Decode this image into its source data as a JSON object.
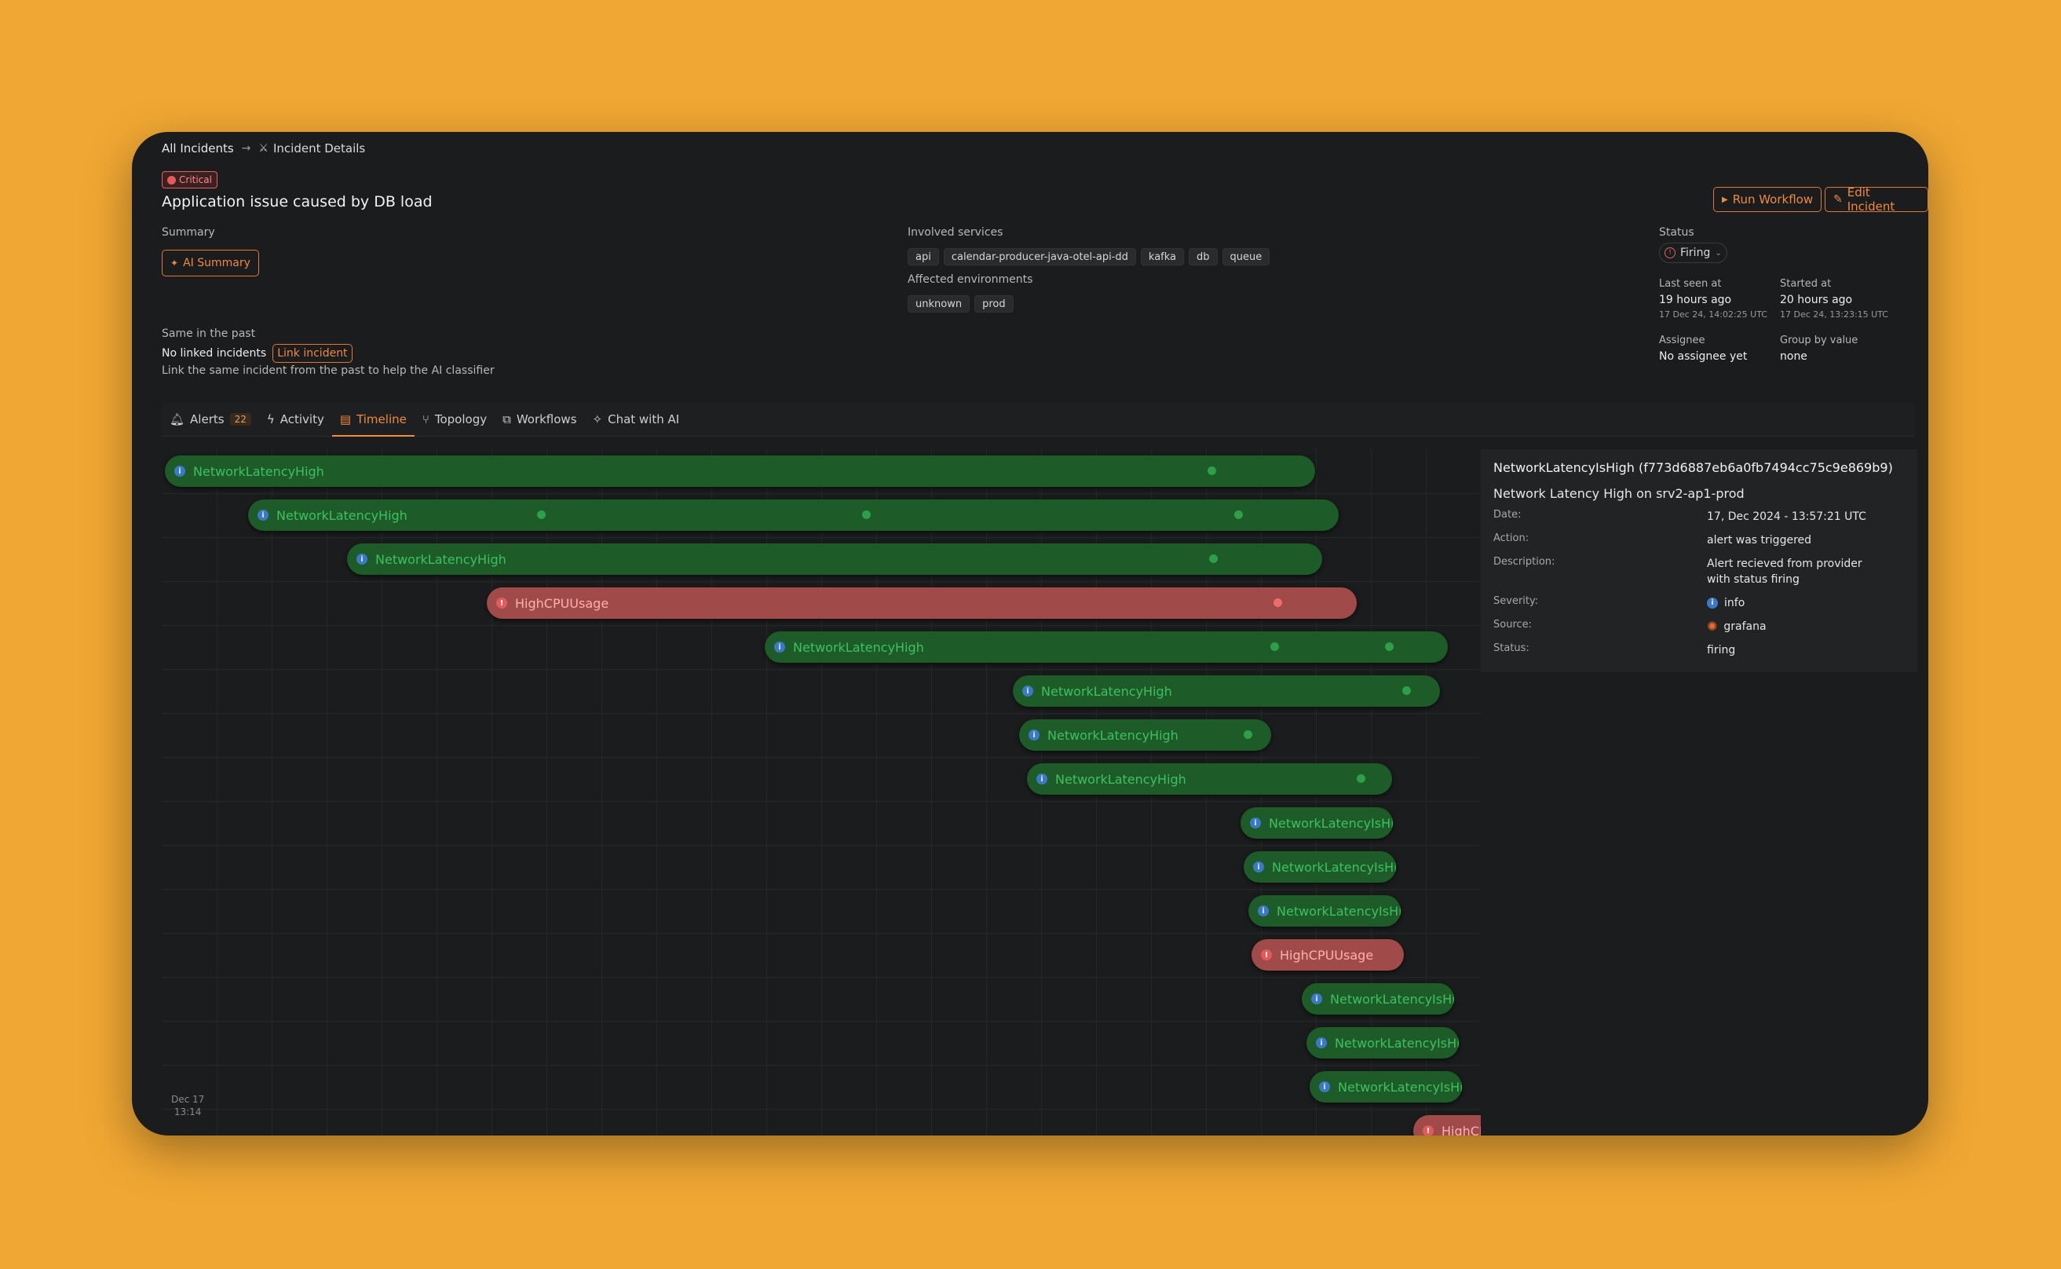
{
  "breadcrumb": {
    "root": "All Incidents",
    "current": "Incident Details"
  },
  "incident": {
    "severity": "Critical",
    "title": "Application issue caused by DB load"
  },
  "actions": {
    "run_workflow": "Run Workflow",
    "edit_incident": "Edit Incident"
  },
  "summary": {
    "label": "Summary",
    "ai_button": "AI Summary"
  },
  "services": {
    "label": "Involved services",
    "items": [
      "api",
      "calendar-producer-java-otel-api-dd",
      "kafka",
      "db",
      "queue"
    ]
  },
  "environments": {
    "label": "Affected environments",
    "items": [
      "unknown",
      "prod"
    ]
  },
  "past": {
    "label": "Same in the past",
    "value": "No linked incidents",
    "link_button": "Link incident",
    "hint": "Link the same incident from the past to help the AI classifier"
  },
  "status": {
    "label": "Status",
    "value": "Firing"
  },
  "last_seen": {
    "label": "Last seen at",
    "relative": "19 hours ago",
    "absolute": "17 Dec 24, 14:02:25 UTC"
  },
  "started": {
    "label": "Started at",
    "relative": "20 hours ago",
    "absolute": "17 Dec 24, 13:23:15 UTC"
  },
  "assignee": {
    "label": "Assignee",
    "value": "No assignee yet"
  },
  "group_by": {
    "label": "Group by value",
    "value": "none"
  },
  "tabs": [
    {
      "label": "Alerts",
      "count": "22"
    },
    {
      "label": "Activity"
    },
    {
      "label": "Timeline"
    },
    {
      "label": "Topology"
    },
    {
      "label": "Workflows"
    },
    {
      "label": "Chat with AI"
    }
  ],
  "timeline": {
    "axis_date": "Dec 17",
    "axis_time": "13:14",
    "bars": [
      {
        "label": "NetworkLatencyHigh",
        "kind": "info"
      },
      {
        "label": "NetworkLatencyHigh",
        "kind": "info"
      },
      {
        "label": "NetworkLatencyHigh",
        "kind": "info"
      },
      {
        "label": "HighCPUUsage",
        "kind": "error"
      },
      {
        "label": "NetworkLatencyHigh",
        "kind": "info"
      },
      {
        "label": "NetworkLatencyHigh",
        "kind": "info"
      },
      {
        "label": "NetworkLatencyHigh",
        "kind": "info"
      },
      {
        "label": "NetworkLatencyHigh",
        "kind": "info"
      },
      {
        "label": "NetworkLatencyIsHigh",
        "kind": "info"
      },
      {
        "label": "NetworkLatencyIsHigh",
        "kind": "info"
      },
      {
        "label": "NetworkLatencyIsHigh",
        "kind": "info"
      },
      {
        "label": "HighCPUUsage",
        "kind": "error"
      },
      {
        "label": "NetworkLatencyIsHigh",
        "kind": "info"
      },
      {
        "label": "NetworkLatencyIsHigh",
        "kind": "info"
      },
      {
        "label": "NetworkLatencyIsHigh",
        "kind": "info"
      },
      {
        "label": "HighCPUUsage",
        "kind": "error"
      }
    ]
  },
  "detail": {
    "header": "NetworkLatencyIsHigh (f773d6887eb6a0fb7494cc75c9e869b9)",
    "subtitle": "Network Latency High on srv2-ap1-prod",
    "rows": [
      {
        "key": "Date:",
        "value": "17, Dec 2024 - 13:57:21 UTC"
      },
      {
        "key": "Action:",
        "value": "alert was triggered"
      },
      {
        "key": "Description:",
        "value": "Alert recieved from provider with status firing"
      },
      {
        "key": "Severity:",
        "value": "info"
      },
      {
        "key": "Source:",
        "value": "grafana"
      },
      {
        "key": "Status:",
        "value": "firing"
      }
    ]
  },
  "colors": {
    "accent": "#f08a3c",
    "bar_green": "#1d5c28",
    "bar_red": "#a14a4a",
    "background": "#f0a733"
  }
}
